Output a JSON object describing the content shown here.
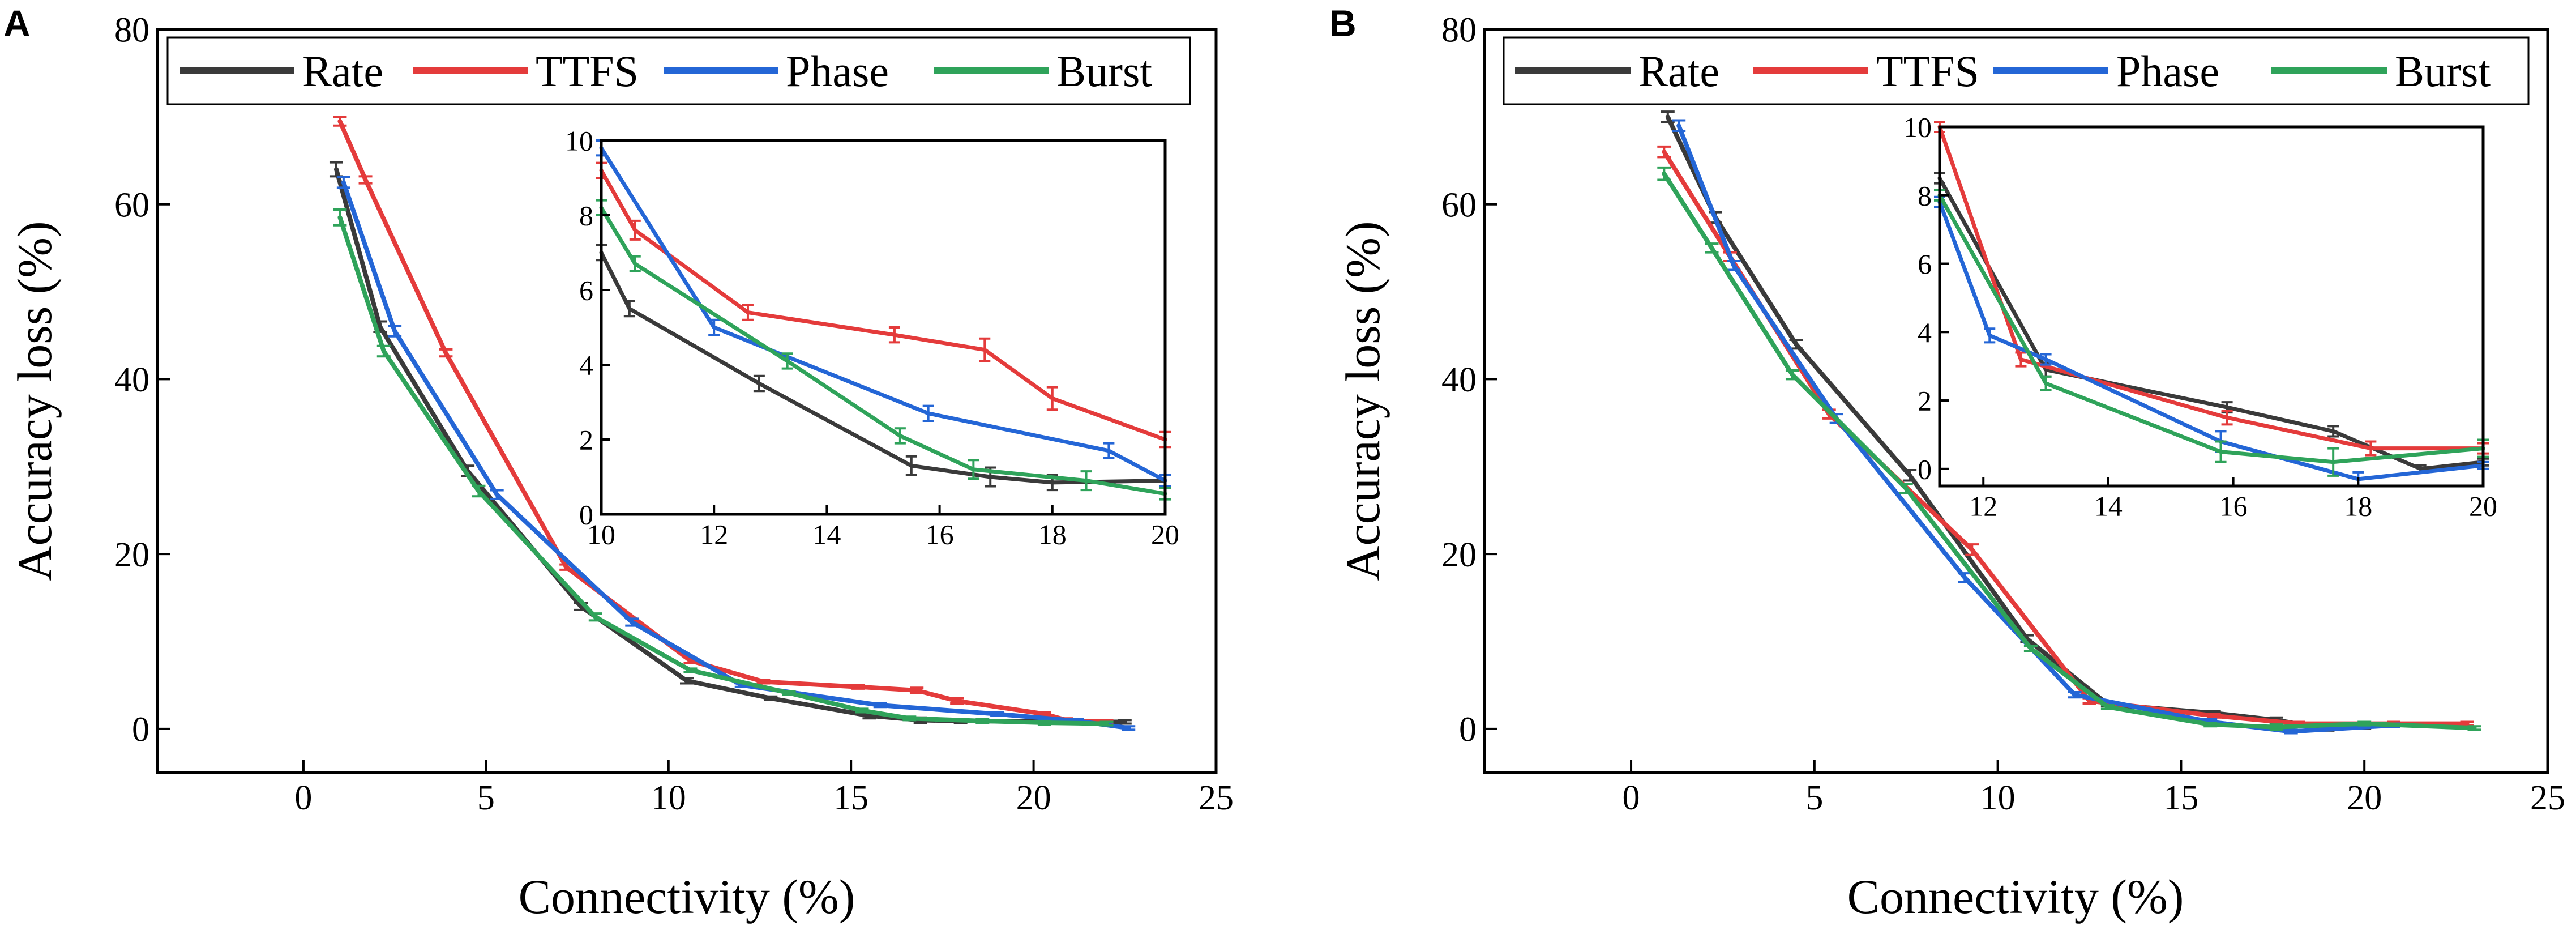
{
  "colors": {
    "Rate": "#3a3a3a",
    "TTFS": "#e43b3b",
    "Phase": "#2466d6",
    "Burst": "#2fa35a",
    "axis": "#000000"
  },
  "chart_data": [
    {
      "id": "A",
      "panel_label": "A",
      "type": "line",
      "xlabel": "Connectivity (%)",
      "ylabel": "Accuracy loss (%)",
      "xlim": [
        -4,
        25
      ],
      "ylim": [
        -5,
        80
      ],
      "xticks": [
        0,
        5,
        10,
        15,
        20,
        25
      ],
      "yticks": [
        0,
        20,
        40,
        60,
        80
      ],
      "legend": [
        "Rate",
        "TTFS",
        "Phase",
        "Burst"
      ],
      "series": [
        {
          "name": "Rate",
          "x": [
            0.9,
            2.1,
            4.5,
            7.6,
            10.5,
            12.8,
            15.5,
            16.9,
            18.0,
            21.9,
            22.5
          ],
          "y": [
            64,
            46,
            29.5,
            14,
            5.5,
            3.5,
            1.5,
            1.0,
            0.9,
            0.8,
            0.8
          ],
          "err": [
            0.8,
            0.6,
            0.6,
            0.4,
            0.3,
            0.2,
            0.3,
            0.3,
            0.2,
            0.2,
            0.2
          ]
        },
        {
          "name": "TTFS",
          "x": [
            1.0,
            1.7,
            3.9,
            7.2,
            10.6,
            12.6,
            15.2,
            16.8,
            17.9,
            20.3,
            20.9,
            21.7,
            22.0
          ],
          "y": [
            69.5,
            62.8,
            43,
            18.5,
            7.8,
            5.4,
            4.8,
            4.4,
            3.2,
            1.7,
            1.0,
            0.8,
            0.8
          ],
          "err": [
            0.5,
            0.4,
            0.4,
            0.3,
            0.3,
            0.2,
            0.2,
            0.3,
            0.3,
            0.2,
            0.2,
            0.2,
            0.2
          ]
        },
        {
          "name": "Phase",
          "x": [
            1.1,
            2.5,
            5.3,
            9.0,
            12.0,
            15.8,
            19.0,
            21.2,
            22.6
          ],
          "y": [
            62.5,
            45.5,
            26.8,
            12.2,
            5.0,
            2.7,
            1.7,
            0.9,
            0.1
          ],
          "err": [
            0.6,
            0.6,
            0.5,
            0.4,
            0.2,
            0.2,
            0.2,
            0.2,
            0.2
          ]
        },
        {
          "name": "Burst",
          "x": [
            1.0,
            2.2,
            4.8,
            8.0,
            10.6,
            13.3,
            15.3,
            16.6,
            18.6,
            20.3,
            22.0
          ],
          "y": [
            58.5,
            43.2,
            27.2,
            12.8,
            6.7,
            4.1,
            2.1,
            1.2,
            0.9,
            0.7,
            0.6
          ],
          "err": [
            0.9,
            0.6,
            0.6,
            0.4,
            0.2,
            0.2,
            0.2,
            0.2,
            0.2,
            0.2,
            0.2
          ]
        }
      ],
      "inset": {
        "xlim": [
          10,
          20
        ],
        "ylim": [
          0,
          10
        ],
        "xticks": [
          10,
          12,
          14,
          16,
          18,
          20
        ],
        "yticks": [
          0,
          2,
          4,
          6,
          8,
          10
        ],
        "series": [
          {
            "name": "Rate",
            "x": [
              10.0,
              10.5,
              12.8,
              15.5,
              16.9,
              18.0,
              20.0
            ],
            "y": [
              7.0,
              5.5,
              3.5,
              1.3,
              1.0,
              0.85,
              0.9
            ],
            "err": [
              0.2,
              0.2,
              0.2,
              0.25,
              0.25,
              0.2,
              0.15
            ]
          },
          {
            "name": "TTFS",
            "x": [
              10.0,
              10.6,
              12.6,
              15.2,
              16.8,
              18.0,
              20.0
            ],
            "y": [
              9.2,
              7.6,
              5.4,
              4.8,
              4.4,
              3.1,
              2.0
            ],
            "err": [
              0.2,
              0.25,
              0.2,
              0.2,
              0.3,
              0.3,
              0.2
            ]
          },
          {
            "name": "Phase",
            "x": [
              10.0,
              12.0,
              15.8,
              19.0,
              20.0
            ],
            "y": [
              9.8,
              5.0,
              2.7,
              1.7,
              0.9
            ],
            "err": [
              0.2,
              0.2,
              0.2,
              0.2,
              0.15
            ]
          },
          {
            "name": "Burst",
            "x": [
              10.0,
              10.6,
              13.3,
              15.3,
              16.6,
              18.6,
              20.0
            ],
            "y": [
              8.2,
              6.7,
              4.1,
              2.1,
              1.2,
              0.9,
              0.55
            ],
            "err": [
              0.2,
              0.2,
              0.2,
              0.2,
              0.25,
              0.25,
              0.15
            ]
          }
        ]
      }
    },
    {
      "id": "B",
      "panel_label": "B",
      "type": "line",
      "xlabel": "Connectivity (%)",
      "ylabel": "Accuracy loss (%)",
      "xlim": [
        -4,
        25
      ],
      "ylim": [
        -5,
        80
      ],
      "xticks": [
        0,
        5,
        10,
        15,
        20,
        25
      ],
      "yticks": [
        0,
        20,
        40,
        60,
        80
      ],
      "legend": [
        "Rate",
        "TTFS",
        "Phase",
        "Burst"
      ],
      "series": [
        {
          "name": "Rate",
          "x": [
            1.0,
            2.3,
            4.5,
            7.6,
            10.8,
            13.0,
            15.9,
            17.6,
            19.0,
            20.0
          ],
          "y": [
            70,
            58.5,
            44,
            29,
            10.3,
            2.8,
            1.8,
            1.0,
            0.0,
            0.2
          ],
          "err": [
            0.6,
            0.6,
            0.5,
            0.6,
            0.4,
            0.2,
            0.2,
            0.3,
            0.2,
            0.2
          ]
        },
        {
          "name": "TTFS",
          "x": [
            0.9,
            2.7,
            5.4,
            9.3,
            12.5,
            15.9,
            18.2,
            20.8,
            22.8
          ],
          "y": [
            66,
            54,
            36,
            20.5,
            3.2,
            1.5,
            0.6,
            0.6,
            0.6
          ],
          "err": [
            0.6,
            0.5,
            0.5,
            0.6,
            0.3,
            0.2,
            0.2,
            0.2,
            0.2
          ]
        },
        {
          "name": "Phase",
          "x": [
            1.3,
            2.8,
            5.6,
            9.1,
            12.1,
            15.8,
            18.0,
            20.8
          ],
          "y": [
            69,
            53,
            35.5,
            17.3,
            3.9,
            0.8,
            -0.3,
            0.4
          ],
          "err": [
            0.6,
            0.5,
            0.5,
            0.5,
            0.3,
            0.3,
            0.2,
            0.2
          ]
        },
        {
          "name": "Burst",
          "x": [
            0.9,
            2.2,
            4.4,
            7.5,
            10.9,
            13.0,
            15.8,
            17.6,
            20.0,
            23.0
          ],
          "y": [
            63.5,
            55,
            40.5,
            27.5,
            9.2,
            2.5,
            0.5,
            0.2,
            0.6,
            0.1
          ],
          "err": [
            0.7,
            0.5,
            0.5,
            0.5,
            0.3,
            0.2,
            0.2,
            0.3,
            0.2,
            0.2
          ]
        }
      ],
      "inset": {
        "xlim": [
          11.3,
          20
        ],
        "ylim": [
          -0.5,
          10
        ],
        "xticks": [
          12,
          14,
          16,
          18,
          20
        ],
        "yticks": [
          0,
          2,
          4,
          6,
          8,
          10
        ],
        "series": [
          {
            "name": "Rate",
            "x": [
              11.3,
              13.0,
              15.9,
              17.6,
              19.0,
              20.0
            ],
            "y": [
              8.5,
              2.9,
              1.8,
              1.1,
              0.0,
              0.2
            ],
            "err": [
              0.15,
              0.2,
              0.15,
              0.15,
              0.1,
              0.1
            ]
          },
          {
            "name": "TTFS",
            "x": [
              11.3,
              12.6,
              15.9,
              18.2,
              20.0
            ],
            "y": [
              10.0,
              3.2,
              1.5,
              0.6,
              0.6
            ],
            "err": [
              0.15,
              0.2,
              0.2,
              0.2,
              0.15
            ]
          },
          {
            "name": "Phase",
            "x": [
              11.3,
              12.1,
              13.0,
              15.8,
              18.0,
              20.0
            ],
            "y": [
              7.8,
              3.9,
              3.2,
              0.8,
              -0.3,
              0.1
            ],
            "err": [
              0.15,
              0.2,
              0.15,
              0.3,
              0.2,
              0.1
            ]
          },
          {
            "name": "Burst",
            "x": [
              11.3,
              13.0,
              15.8,
              17.6,
              20.0
            ],
            "y": [
              8.0,
              2.5,
              0.5,
              0.2,
              0.6
            ],
            "err": [
              0.15,
              0.2,
              0.3,
              0.4,
              0.25
            ]
          }
        ]
      }
    }
  ]
}
